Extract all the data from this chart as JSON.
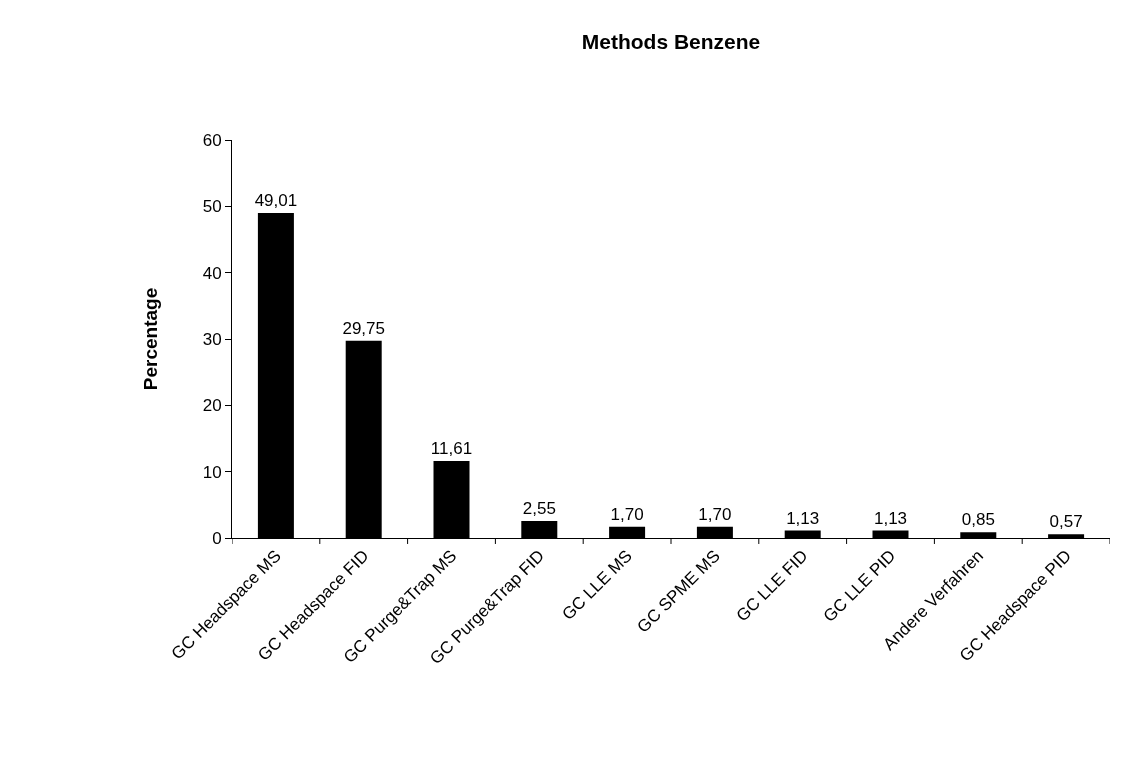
{
  "chart_data": {
    "type": "bar",
    "title": "Methods Benzene",
    "ylabel": "Percentage",
    "categories": [
      "GC Headspace MS",
      "GC Headspace FID",
      "GC Purge&Trap MS",
      "GC Purge&Trap FID",
      "GC LLE MS",
      "GC SPME MS",
      "GC LLE FID",
      "GC LLE PID",
      "Andere Verfahren",
      "GC Headspace PID"
    ],
    "values": [
      49.01,
      29.75,
      11.61,
      2.55,
      1.7,
      1.7,
      1.13,
      1.13,
      0.85,
      0.57
    ],
    "value_labels": [
      "49,01",
      "29,75",
      "11,61",
      "2,55",
      "1,70",
      "1,70",
      "1,13",
      "1,13",
      "0,85",
      "0,57"
    ],
    "color": "#000000",
    "ylim": [
      0,
      60
    ],
    "yticks": [
      0,
      10,
      20,
      30,
      40,
      50,
      60
    ],
    "legend": false
  }
}
